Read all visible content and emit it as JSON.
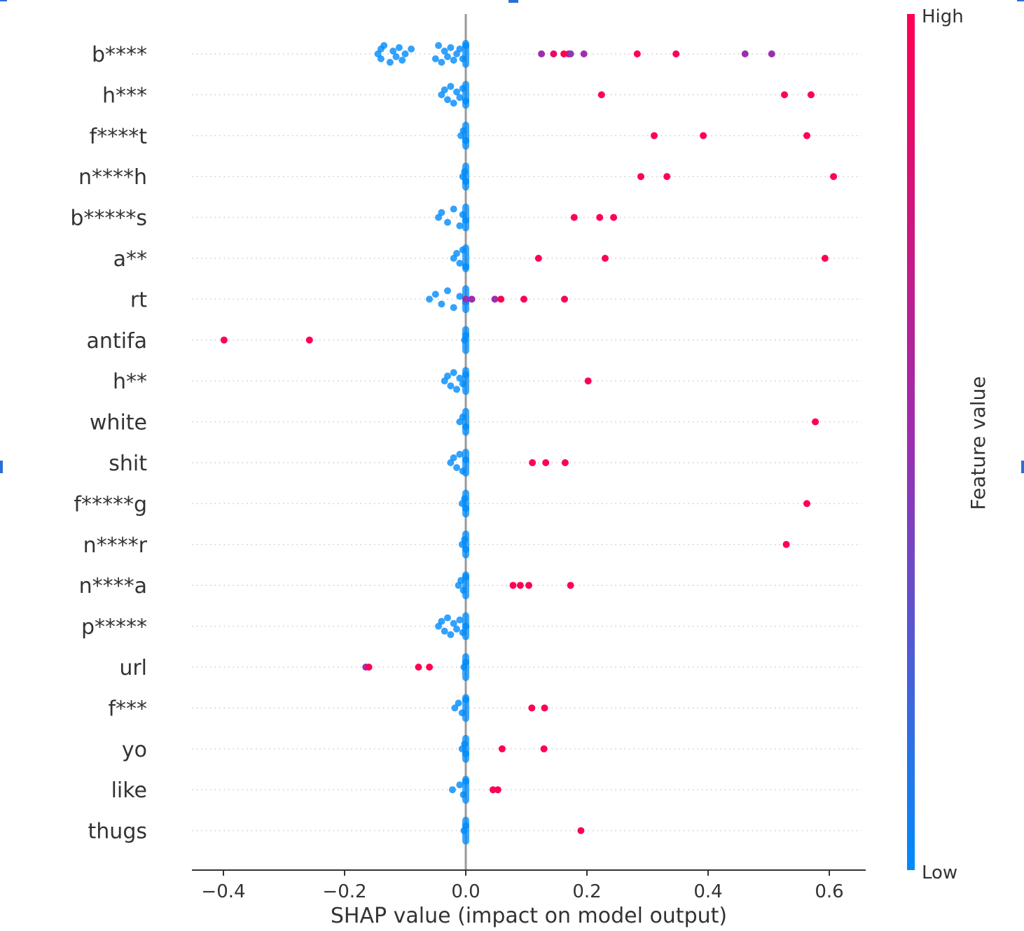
{
  "chart_data": {
    "type": "scatter",
    "xlabel": "SHAP value (impact on model output)",
    "xlim": [
      -0.45,
      0.6
    ],
    "xticks": [
      -0.4,
      -0.2,
      0.0,
      0.2,
      0.4,
      0.6
    ],
    "xtick_labels": [
      "−0.4",
      "−0.2",
      "0.0",
      "0.2",
      "0.4",
      "0.6"
    ],
    "zero_line": true,
    "grid": "dotted horizontal row guides",
    "colorbar": {
      "label": "Feature value",
      "high_label": "High",
      "low_label": "Low",
      "high_color": "#ff0052",
      "mid_color": "#9b2eb0",
      "low_color": "#008bfb"
    },
    "features": [
      {
        "name": "b****",
        "low": [
          -0.145,
          -0.14,
          -0.14,
          -0.135,
          -0.125,
          -0.12,
          -0.115,
          -0.11,
          -0.105,
          -0.1,
          -0.09,
          -0.05,
          -0.045,
          -0.04,
          -0.035,
          -0.03,
          -0.025,
          -0.02,
          -0.015,
          -0.01,
          -0.005,
          0.0
        ],
        "high": [
          {
            "x": 0.125,
            "v": 0.5
          },
          {
            "x": 0.145,
            "v": 0.9
          },
          {
            "x": 0.162,
            "v": 1.0
          },
          {
            "x": 0.17,
            "v": 0.95
          },
          {
            "x": 0.173,
            "v": 0.45
          },
          {
            "x": 0.195,
            "v": 0.5
          },
          {
            "x": 0.283,
            "v": 1.0
          },
          {
            "x": 0.347,
            "v": 1.0
          },
          {
            "x": 0.461,
            "v": 0.5
          },
          {
            "x": 0.505,
            "v": 0.5
          }
        ]
      },
      {
        "name": "h***",
        "low": [
          -0.04,
          -0.035,
          -0.03,
          -0.025,
          -0.02,
          -0.015,
          -0.01,
          -0.005,
          0.0
        ],
        "high": [
          {
            "x": 0.224,
            "v": 1.0
          },
          {
            "x": 0.526,
            "v": 1.0
          },
          {
            "x": 0.57,
            "v": 1.0
          }
        ]
      },
      {
        "name": "f****t",
        "low": [
          -0.008,
          -0.004,
          0.0
        ],
        "high": [
          {
            "x": 0.311,
            "v": 1.0
          },
          {
            "x": 0.392,
            "v": 1.0
          },
          {
            "x": 0.563,
            "v": 1.0
          }
        ]
      },
      {
        "name": "n****h",
        "low": [
          -0.005,
          -0.002,
          0.0
        ],
        "high": [
          {
            "x": 0.289,
            "v": 1.0
          },
          {
            "x": 0.332,
            "v": 1.0
          },
          {
            "x": 0.607,
            "v": 1.0
          }
        ]
      },
      {
        "name": "b*****s",
        "low": [
          -0.045,
          -0.04,
          -0.03,
          -0.02,
          -0.01,
          -0.005,
          0.0
        ],
        "high": [
          {
            "x": 0.179,
            "v": 1.0
          },
          {
            "x": 0.221,
            "v": 1.0
          },
          {
            "x": 0.244,
            "v": 1.0
          }
        ]
      },
      {
        "name": "a**",
        "low": [
          -0.02,
          -0.015,
          -0.01,
          -0.005,
          0.0
        ],
        "high": [
          {
            "x": 0.12,
            "v": 1.0
          },
          {
            "x": 0.23,
            "v": 1.0
          },
          {
            "x": 0.593,
            "v": 1.0
          }
        ]
      },
      {
        "name": "rt",
        "low": [
          -0.06,
          -0.05,
          -0.04,
          -0.03,
          -0.02,
          -0.01,
          0.0
        ],
        "high": [
          {
            "x": 0.0,
            "v": 0.5
          },
          {
            "x": 0.01,
            "v": 0.5
          },
          {
            "x": 0.048,
            "v": 0.5
          },
          {
            "x": 0.058,
            "v": 1.0
          },
          {
            "x": 0.096,
            "v": 1.0
          },
          {
            "x": 0.163,
            "v": 1.0
          }
        ]
      },
      {
        "name": "antifa",
        "low": [
          -0.002,
          0.0
        ],
        "high": [
          {
            "x": -0.399,
            "v": 1.0
          },
          {
            "x": -0.258,
            "v": 1.0
          }
        ]
      },
      {
        "name": "h**",
        "low": [
          -0.035,
          -0.03,
          -0.025,
          -0.02,
          -0.015,
          -0.01,
          -0.005,
          0.0
        ],
        "high": [
          {
            "x": 0.202,
            "v": 1.0
          }
        ]
      },
      {
        "name": "white",
        "low": [
          -0.01,
          -0.005,
          0.0
        ],
        "high": [
          {
            "x": 0.577,
            "v": 1.0
          }
        ]
      },
      {
        "name": "shit",
        "low": [
          -0.025,
          -0.02,
          -0.015,
          -0.01,
          -0.005,
          0.0
        ],
        "high": [
          {
            "x": 0.11,
            "v": 1.0
          },
          {
            "x": 0.132,
            "v": 1.0
          },
          {
            "x": 0.164,
            "v": 1.0
          }
        ]
      },
      {
        "name": "f*****g",
        "low": [
          -0.006,
          -0.002,
          0.0
        ],
        "high": [
          {
            "x": 0.563,
            "v": 1.0
          }
        ]
      },
      {
        "name": "n****r",
        "low": [
          -0.006,
          -0.002,
          0.0
        ],
        "high": [
          {
            "x": 0.529,
            "v": 1.0
          }
        ]
      },
      {
        "name": "n****a",
        "low": [
          -0.012,
          -0.008,
          -0.004,
          0.0
        ],
        "high": [
          {
            "x": 0.078,
            "v": 1.0
          },
          {
            "x": 0.09,
            "v": 1.0
          },
          {
            "x": 0.104,
            "v": 1.0
          },
          {
            "x": 0.173,
            "v": 1.0
          }
        ]
      },
      {
        "name": "p*****",
        "low": [
          -0.045,
          -0.04,
          -0.035,
          -0.03,
          -0.025,
          -0.02,
          -0.015,
          -0.01,
          -0.005,
          0.0
        ],
        "high": []
      },
      {
        "name": "url",
        "low": [
          -0.003,
          0.0
        ],
        "high": [
          {
            "x": -0.165,
            "v": 0.5
          },
          {
            "x": -0.16,
            "v": 1.0
          },
          {
            "x": -0.078,
            "v": 1.0
          },
          {
            "x": -0.06,
            "v": 1.0
          }
        ]
      },
      {
        "name": "f***",
        "low": [
          -0.018,
          -0.012,
          -0.006,
          0.0
        ],
        "high": [
          {
            "x": 0.109,
            "v": 1.0
          },
          {
            "x": 0.13,
            "v": 1.0
          }
        ]
      },
      {
        "name": "yo",
        "low": [
          -0.006,
          -0.002,
          0.0
        ],
        "high": [
          {
            "x": 0.06,
            "v": 1.0
          },
          {
            "x": 0.129,
            "v": 1.0
          }
        ]
      },
      {
        "name": "like",
        "low": [
          -0.022,
          -0.01,
          -0.004,
          0.0
        ],
        "high": [
          {
            "x": 0.045,
            "v": 1.0
          },
          {
            "x": 0.053,
            "v": 1.0
          }
        ]
      },
      {
        "name": "thugs",
        "low": [
          -0.003,
          0.0
        ],
        "high": [
          {
            "x": 0.19,
            "v": 1.0
          }
        ]
      }
    ]
  }
}
